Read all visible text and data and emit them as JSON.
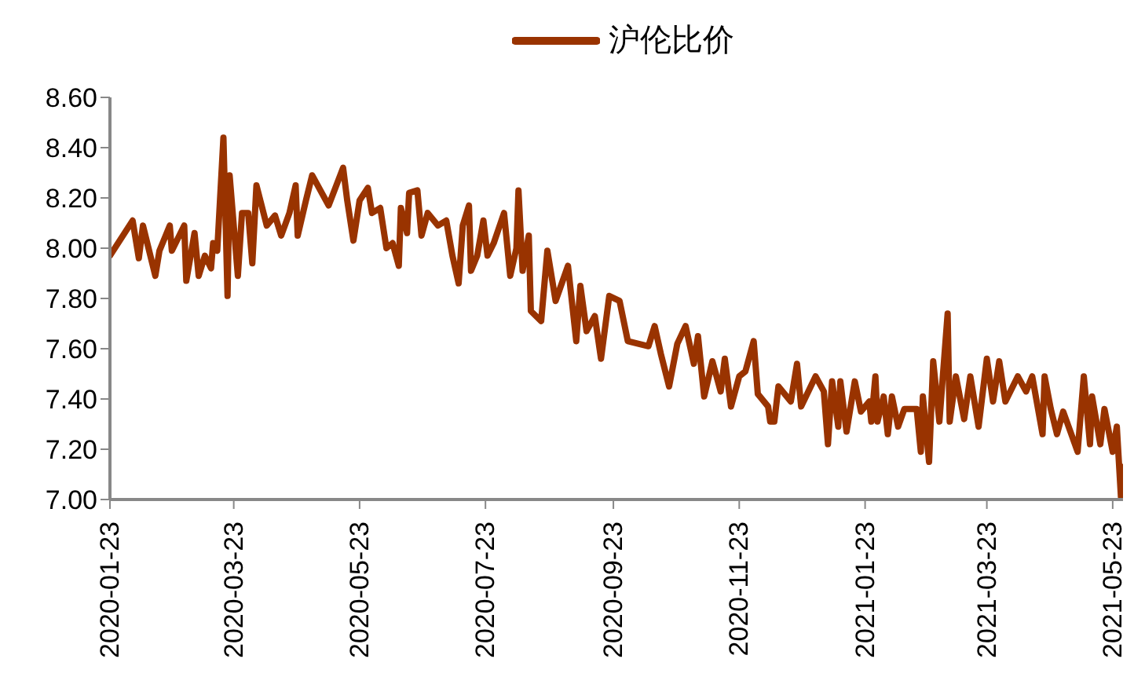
{
  "chart_data": {
    "type": "line",
    "legend": "top",
    "grid": false,
    "marker": "none",
    "line_style": "solid",
    "x": [
      "2020-01-23",
      "2020-02-03",
      "2020-02-06",
      "2020-02-08",
      "2020-02-14",
      "2020-02-16",
      "2020-02-21",
      "2020-02-22",
      "2020-02-28",
      "2020-02-29",
      "2020-03-04",
      "2020-03-06",
      "2020-03-09",
      "2020-03-12",
      "2020-03-13",
      "2020-03-15",
      "2020-03-18",
      "2020-03-20",
      "2020-03-21",
      "2020-03-25",
      "2020-03-27",
      "2020-03-30",
      "2020-04-01",
      "2020-04-03",
      "2020-04-08",
      "2020-04-12",
      "2020-04-15",
      "2020-04-19",
      "2020-04-22",
      "2020-04-23",
      "2020-04-27",
      "2020-04-30",
      "2020-05-08",
      "2020-05-15",
      "2020-05-17",
      "2020-05-20",
      "2020-05-23",
      "2020-05-27",
      "2020-05-29",
      "2020-06-02",
      "2020-06-05",
      "2020-06-08",
      "2020-06-11",
      "2020-06-12",
      "2020-06-15",
      "2020-06-16",
      "2020-06-20",
      "2020-06-22",
      "2020-06-25",
      "2020-06-30",
      "2020-07-04",
      "2020-07-07",
      "2020-07-10",
      "2020-07-12",
      "2020-07-15",
      "2020-07-16",
      "2020-07-19",
      "2020-07-22",
      "2020-07-24",
      "2020-07-27",
      "2020-08-01",
      "2020-08-04",
      "2020-08-07",
      "2020-08-08",
      "2020-08-10",
      "2020-08-13",
      "2020-08-14",
      "2020-08-19",
      "2020-08-22",
      "2020-08-26",
      "2020-09-01",
      "2020-09-05",
      "2020-09-07",
      "2020-09-10",
      "2020-09-14",
      "2020-09-17",
      "2020-09-21",
      "2020-09-26",
      "2020-09-30",
      "2020-10-10",
      "2020-10-13",
      "2020-10-16",
      "2020-10-20",
      "2020-10-24",
      "2020-10-28",
      "2020-11-01",
      "2020-11-03",
      "2020-11-06",
      "2020-11-10",
      "2020-11-14",
      "2020-11-16",
      "2020-11-19",
      "2020-11-23",
      "2020-11-26",
      "2020-11-30",
      "2020-12-02",
      "2020-12-07",
      "2020-12-08",
      "2020-12-10",
      "2020-12-12",
      "2020-12-18",
      "2020-12-21",
      "2020-12-23",
      "2020-12-30",
      "2021-01-03",
      "2021-01-05",
      "2021-01-07",
      "2021-01-10",
      "2021-01-11",
      "2021-01-14",
      "2021-01-18",
      "2021-01-21",
      "2021-01-25",
      "2021-01-26",
      "2021-01-28",
      "2021-01-29",
      "2021-02-01",
      "2021-02-03",
      "2021-02-05",
      "2021-02-08",
      "2021-02-11",
      "2021-02-17",
      "2021-02-19",
      "2021-02-20",
      "2021-02-23",
      "2021-02-25",
      "2021-02-28",
      "2021-03-04",
      "2021-03-05",
      "2021-03-08",
      "2021-03-12",
      "2021-03-15",
      "2021-03-19",
      "2021-03-23",
      "2021-03-26",
      "2021-03-29",
      "2021-04-01",
      "2021-04-07",
      "2021-04-11",
      "2021-04-14",
      "2021-04-19",
      "2021-04-20",
      "2021-04-23",
      "2021-04-26",
      "2021-04-29",
      "2021-05-06",
      "2021-05-09",
      "2021-05-12",
      "2021-05-13",
      "2021-05-17",
      "2021-05-19",
      "2021-05-23",
      "2021-05-25",
      "2021-05-27",
      "2021-05-28"
    ],
    "series": [
      {
        "name": "沪伦比价",
        "color": "#993300",
        "values": [
          7.97,
          8.11,
          7.96,
          8.09,
          7.89,
          7.99,
          8.09,
          7.99,
          8.09,
          7.87,
          8.06,
          7.89,
          7.97,
          7.92,
          8.02,
          7.99,
          8.44,
          7.81,
          8.29,
          7.89,
          8.14,
          8.14,
          7.94,
          8.25,
          8.09,
          8.13,
          8.05,
          8.14,
          8.25,
          8.05,
          8.19,
          8.29,
          8.17,
          8.32,
          8.19,
          8.03,
          8.19,
          8.24,
          8.14,
          8.16,
          8.0,
          8.02,
          7.93,
          8.16,
          8.06,
          8.22,
          8.23,
          8.05,
          8.14,
          8.09,
          8.11,
          7.97,
          7.86,
          8.09,
          8.17,
          7.91,
          7.97,
          8.11,
          7.97,
          8.02,
          8.14,
          7.89,
          8.0,
          8.23,
          7.91,
          8.05,
          7.75,
          7.71,
          7.99,
          7.79,
          7.93,
          7.63,
          7.85,
          7.67,
          7.73,
          7.56,
          7.81,
          7.79,
          7.63,
          7.61,
          7.69,
          7.58,
          7.45,
          7.62,
          7.69,
          7.54,
          7.65,
          7.41,
          7.55,
          7.43,
          7.56,
          7.37,
          7.49,
          7.51,
          7.63,
          7.42,
          7.37,
          7.31,
          7.31,
          7.45,
          7.39,
          7.54,
          7.37,
          7.49,
          7.43,
          7.22,
          7.47,
          7.29,
          7.47,
          7.27,
          7.47,
          7.35,
          7.39,
          7.31,
          7.49,
          7.31,
          7.41,
          7.26,
          7.41,
          7.29,
          7.36,
          7.36,
          7.19,
          7.41,
          7.15,
          7.55,
          7.31,
          7.74,
          7.31,
          7.49,
          7.32,
          7.49,
          7.29,
          7.56,
          7.39,
          7.55,
          7.39,
          7.49,
          7.43,
          7.49,
          7.26,
          7.49,
          7.36,
          7.26,
          7.35,
          7.19,
          7.49,
          7.22,
          7.41,
          7.22,
          7.36,
          7.19,
          7.29,
          7.01,
          7.13
        ]
      }
    ],
    "xlim": [
      "2020-01-23",
      "2021-05-28"
    ],
    "xticks": [
      "2020-01-23",
      "2020-03-23",
      "2020-05-23",
      "2020-07-23",
      "2020-09-23",
      "2020-11-23",
      "2021-01-23",
      "2021-03-23",
      "2021-05-23"
    ],
    "ylim": [
      7.0,
      8.6
    ],
    "yticks": [
      {
        "value": 7.0,
        "label": "7.00"
      },
      {
        "value": 7.2,
        "label": "7.20"
      },
      {
        "value": 7.4,
        "label": "7.40"
      },
      {
        "value": 7.6,
        "label": "7.60"
      },
      {
        "value": 7.8,
        "label": "7.80"
      },
      {
        "value": 8.0,
        "label": "8.00"
      },
      {
        "value": 8.2,
        "label": "8.20"
      },
      {
        "value": 8.4,
        "label": "8.40"
      },
      {
        "value": 8.6,
        "label": "8.60"
      }
    ]
  }
}
